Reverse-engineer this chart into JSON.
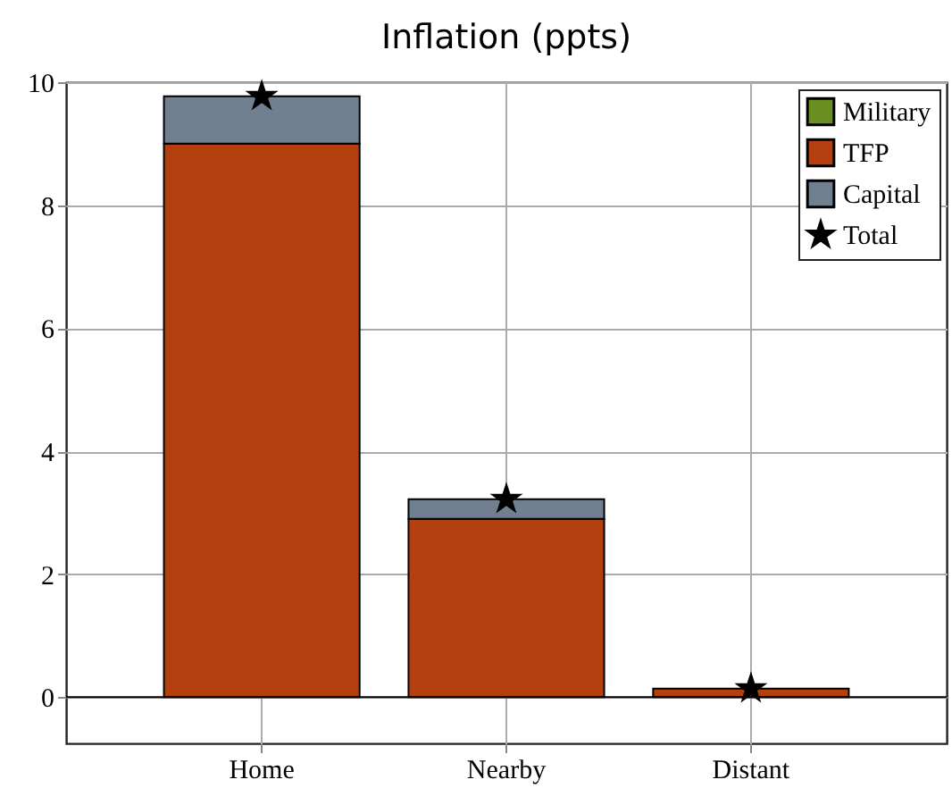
{
  "chart_data": {
    "type": "bar",
    "title": "Inflation (ppts)",
    "categories": [
      "Home",
      "Nearby",
      "Distant"
    ],
    "stacked": true,
    "series": [
      {
        "name": "Military",
        "color": "#6b8e23",
        "values": [
          null,
          null,
          null
        ]
      },
      {
        "name": "TFP",
        "color": "#b5400f",
        "values": [
          9.0,
          2.9,
          0.14
        ]
      },
      {
        "name": "Capital",
        "color": "#708090",
        "values": [
          0.77,
          0.32,
          null
        ]
      },
      {
        "name": "Total",
        "type": "scatter",
        "marker": "star",
        "color": "#000000",
        "x": [
          "Home",
          "Nearby",
          "Distant"
        ],
        "values": [
          9.77,
          3.22,
          0.14
        ]
      }
    ],
    "ylim": [
      -0.75,
      10
    ],
    "yticks": [
      0,
      2,
      4,
      6,
      8,
      10
    ],
    "grid": true,
    "legend": "top right"
  }
}
